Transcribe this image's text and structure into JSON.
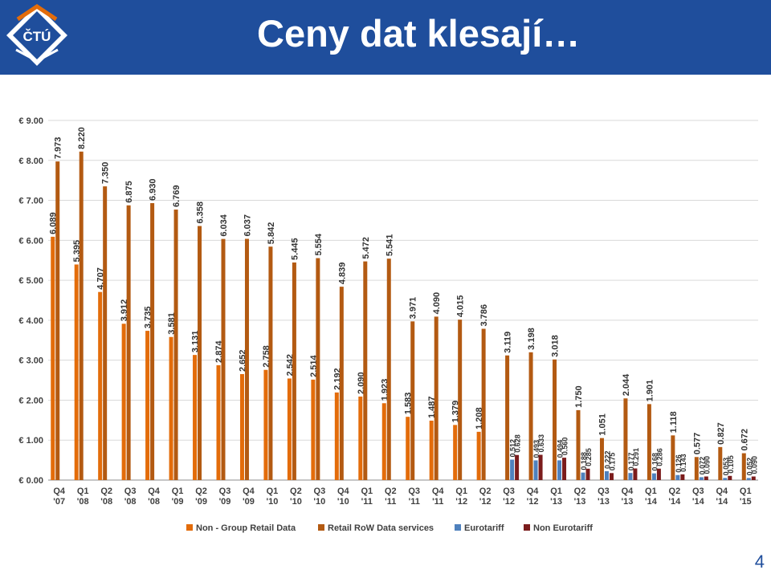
{
  "header": {
    "title": "Ceny dat klesají…",
    "logo_text": "ČTÚ",
    "background_color": "#1f4e9c"
  },
  "page_number": "4",
  "chart_data": {
    "type": "bar",
    "title": "",
    "xlabel": "",
    "ylabel": "",
    "ylim": [
      0,
      9
    ],
    "y_ticks": [
      "€ 0.00",
      "€ 1.00",
      "€ 2.00",
      "€ 3.00",
      "€ 4.00",
      "€ 5.00",
      "€ 6.00",
      "€ 7.00",
      "€ 8.00",
      "€ 9.00"
    ],
    "grid": true,
    "legend_position": "bottom",
    "categories": [
      [
        "Q4",
        "'07"
      ],
      [
        "Q1",
        "'08"
      ],
      [
        "Q2",
        "'08"
      ],
      [
        "Q3",
        "'08"
      ],
      [
        "Q4",
        "'08"
      ],
      [
        "Q1",
        "'09"
      ],
      [
        "Q2",
        "'09"
      ],
      [
        "Q3",
        "'09"
      ],
      [
        "Q4",
        "'09"
      ],
      [
        "Q1",
        "'10"
      ],
      [
        "Q2",
        "'10"
      ],
      [
        "Q3",
        "'10"
      ],
      [
        "Q4",
        "'10"
      ],
      [
        "Q1",
        "'11"
      ],
      [
        "Q2",
        "'11"
      ],
      [
        "Q3",
        "'11"
      ],
      [
        "Q4",
        "'11"
      ],
      [
        "Q1",
        "'12"
      ],
      [
        "Q2",
        "'12"
      ],
      [
        "Q3",
        "'12"
      ],
      [
        "Q4",
        "'12"
      ],
      [
        "Q1",
        "'13"
      ],
      [
        "Q2",
        "'13"
      ],
      [
        "Q3",
        "'13"
      ],
      [
        "Q4",
        "'13"
      ],
      [
        "Q1",
        "'14"
      ],
      [
        "Q2",
        "'14"
      ],
      [
        "Q3",
        "'14"
      ],
      [
        "Q4",
        "'14"
      ],
      [
        "Q1",
        "'15"
      ]
    ],
    "series": [
      {
        "name": "Non - Group Retail Data",
        "color": "#e36c0a",
        "values": [
          6.089,
          5.395,
          4.707,
          3.912,
          3.735,
          3.581,
          3.131,
          2.874,
          2.652,
          2.758,
          2.542,
          2.514,
          2.192,
          2.09,
          1.923,
          1.583,
          1.487,
          1.379,
          1.208,
          null,
          null,
          null,
          null,
          null,
          null,
          null,
          null,
          null,
          null,
          null
        ],
        "labels": [
          "6.089",
          "5.395",
          "4.707",
          "3.912",
          "3.735",
          "3.581",
          "3.131",
          "2.874",
          "2.652",
          "2.758",
          "2.542",
          "2.514",
          "2.192",
          "2.090",
          "1.923",
          "1.583",
          "1.487",
          "1.379",
          "1.208",
          "",
          "",
          "",
          "",
          "",
          "",
          "",
          "",
          "",
          "",
          ""
        ]
      },
      {
        "name": "Retail RoW Data services",
        "color": "#b35a12",
        "values": [
          7.973,
          8.22,
          7.35,
          6.875,
          6.93,
          6.769,
          6.358,
          6.034,
          6.037,
          5.842,
          5.445,
          5.554,
          4.839,
          5.472,
          5.541,
          3.971,
          4.09,
          4.015,
          3.786,
          3.119,
          3.198,
          3.018,
          1.75,
          1.051,
          2.044,
          1.901,
          1.118,
          0.577,
          0.827,
          0.672
        ],
        "labels": [
          "7.973",
          "8.220",
          "7.350",
          "6.875",
          "6.930",
          "6.769",
          "6.358",
          "6.034",
          "6.037",
          "5.842",
          "5.445",
          "5.554",
          "4.839",
          "5.472",
          "5.541",
          "3.971",
          "4.090",
          "4.015",
          "3.786",
          "3.119",
          "3.198",
          "3.018",
          "1.750",
          "1.051",
          "2.044",
          "1.901",
          "1.118",
          "0.577",
          "0.827",
          "0.672"
        ]
      },
      {
        "name": "Eurotariff",
        "color": "#4f81bd",
        "values": [
          null,
          null,
          null,
          null,
          null,
          null,
          null,
          null,
          null,
          null,
          null,
          null,
          null,
          null,
          null,
          null,
          null,
          null,
          null,
          0.512,
          0.493,
          0.494,
          0.188,
          0.222,
          0.177,
          0.168,
          0.126,
          0.072,
          0.053,
          0.052
        ],
        "labels": [
          "",
          "",
          "",
          "",
          "",
          "",
          "",
          "",
          "",
          "",
          "",
          "",
          "",
          "",
          "",
          "",
          "",
          "",
          "",
          "0.512",
          "0.493",
          "0.494",
          "0.188",
          "0.222",
          "0.177",
          "0.168",
          "0.126",
          "0.072",
          "0.053",
          "0.052"
        ]
      },
      {
        "name": "Non Eurotariff",
        "color": "#7b1c1c",
        "values": [
          null,
          null,
          null,
          null,
          null,
          null,
          null,
          null,
          null,
          null,
          null,
          null,
          null,
          null,
          null,
          null,
          null,
          null,
          null,
          0.628,
          0.633,
          0.56,
          0.285,
          0.175,
          0.291,
          0.286,
          0.143,
          0.09,
          0.105,
          0.09
        ],
        "labels": [
          "",
          "",
          "",
          "",
          "",
          "",
          "",
          "",
          "",
          "",
          "",
          "",
          "",
          "",
          "",
          "",
          "",
          "",
          "",
          "0.628",
          "0.633",
          "0.560",
          "0.285",
          "0.175",
          "0.291",
          "0.286",
          "0.143",
          "0.090",
          "0.105",
          "0.090"
        ]
      }
    ]
  }
}
